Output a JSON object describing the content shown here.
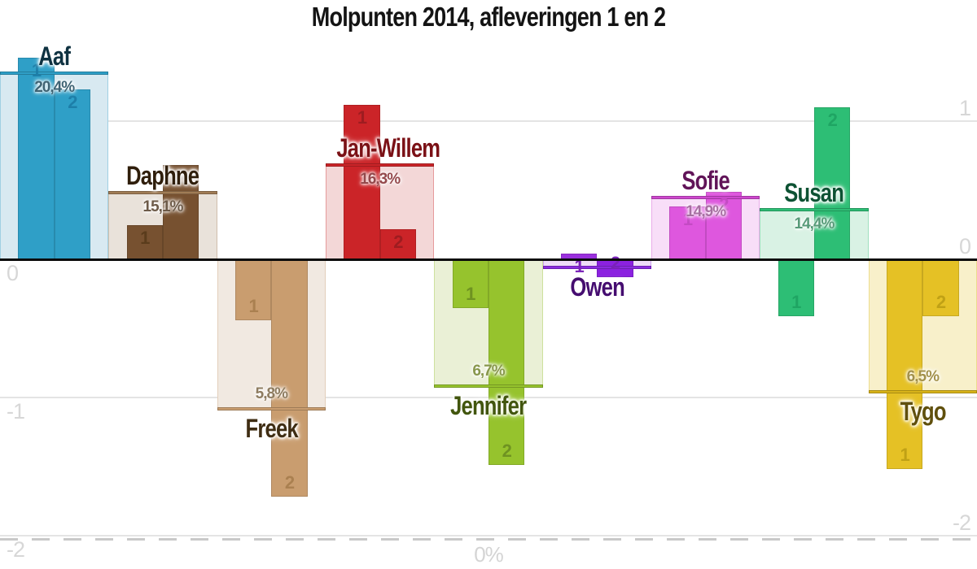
{
  "title": "Molpunten 2014, afleveringen 1 en 2",
  "chart_data": {
    "type": "bar",
    "title": "Molpunten 2014, afleveringen 1 en 2",
    "subtitle": "",
    "xlabel": "",
    "ylabel": "",
    "legend_position": "none",
    "grid": true,
    "ylim": [
      -2.24,
      1.88
    ],
    "y_axis_left_ticks": [
      1,
      0,
      -1,
      -2
    ],
    "y_axis_right_ticks": [
      1,
      0,
      -1,
      -2
    ],
    "gridline_values": [
      1,
      -1,
      -2
    ],
    "zero_line_value": 0,
    "secondary_axis": {
      "label": "0%",
      "dashed_line_value": -2.02
    },
    "series_labels": [
      "1",
      "2"
    ],
    "groups": [
      {
        "name": "Aaf",
        "ep1": 1.46,
        "ep2": 1.23,
        "band": 1.35,
        "pct": "20,4%",
        "colors": {
          "bar": "#2f9fc7",
          "bar2": "#2f9fc7",
          "band": "#d8e9f1",
          "line": "#2f9fc7",
          "name": "#0f3241",
          "pct": "#3f6373",
          "barlabel": "#1d7fa9"
        }
      },
      {
        "name": "Daphne",
        "ep1": 0.25,
        "ep2": 0.68,
        "band": 0.48,
        "pct": "15,1%",
        "colors": {
          "bar": "#775130",
          "bar2": "#775130",
          "band": "#e9e2da",
          "line": "#a07c55",
          "name": "#2f1e0b",
          "pct": "#6d5b49",
          "barlabel": "#5a3c1c"
        }
      },
      {
        "name": "Freek",
        "ep1": -0.44,
        "ep2": -1.72,
        "band": -1.08,
        "pct": "5,8%",
        "colors": {
          "bar": "#c99d6f",
          "bar2": "#c99d6f",
          "band": "#f1e9e1",
          "line": "#c99d6f",
          "name": "#3f2d13",
          "pct": "#8e7c60",
          "barlabel": "#aa8050"
        }
      },
      {
        "name": "Jan-Willem",
        "ep1": 1.12,
        "ep2": 0.22,
        "band": 0.68,
        "pct": "16,3%",
        "colors": {
          "bar": "#cb2428",
          "bar2": "#cb2428",
          "band": "#f3d7d7",
          "line": "#cb2428",
          "name": "#7b1116",
          "pct": "#94494c",
          "barlabel": "#9e1c20"
        }
      },
      {
        "name": "Jennifer",
        "ep1": -0.35,
        "ep2": -1.49,
        "band": -0.92,
        "pct": "6,7%",
        "colors": {
          "bar": "#96c32d",
          "bar2": "#96c32d",
          "band": "#eaf0d6",
          "line": "#96c32d",
          "name": "#42560e",
          "pct": "#88974c",
          "barlabel": "#6f9321"
        }
      },
      {
        "name": "Owen",
        "ep1": 0.04,
        "ep2": -0.13,
        "band": -0.06,
        "pct": "",
        "colors": {
          "bar": "#9a30dd",
          "bar2": "#8b22e0",
          "band": "#eedcf8",
          "line": "#8b2be0",
          "name": "#450d70",
          "pct": "#7a5a92",
          "barlabel": "#7a22b8"
        }
      },
      {
        "name": "Sofie",
        "ep1": 0.38,
        "ep2": 0.49,
        "band": 0.45,
        "pct": "14,9%",
        "colors": {
          "bar": "#de57de",
          "bar2": "#de57de",
          "band": "#f8def8",
          "line": "#ce47ce",
          "name": "#611458",
          "pct": "#a770a2",
          "barlabel": "#c44ac4"
        }
      },
      {
        "name": "Susan",
        "ep1": -0.41,
        "ep2": 1.1,
        "band": 0.36,
        "pct": "14,4%",
        "colors": {
          "bar": "#2dbe75",
          "bar2": "#2dbe75",
          "band": "#d9f2e4",
          "line": "#2dbe75",
          "name": "#0d5233",
          "pct": "#579a78",
          "barlabel": "#1fa563"
        }
      },
      {
        "name": "Tygo",
        "ep1": -1.52,
        "ep2": -0.41,
        "band": -0.96,
        "pct": "6,5%",
        "colors": {
          "bar": "#e5c125",
          "bar2": "#e5c125",
          "band": "#f8f0ca",
          "line": "#d8b319",
          "name": "#60500d",
          "pct": "#a3914b",
          "barlabel": "#c0a115"
        }
      }
    ]
  }
}
